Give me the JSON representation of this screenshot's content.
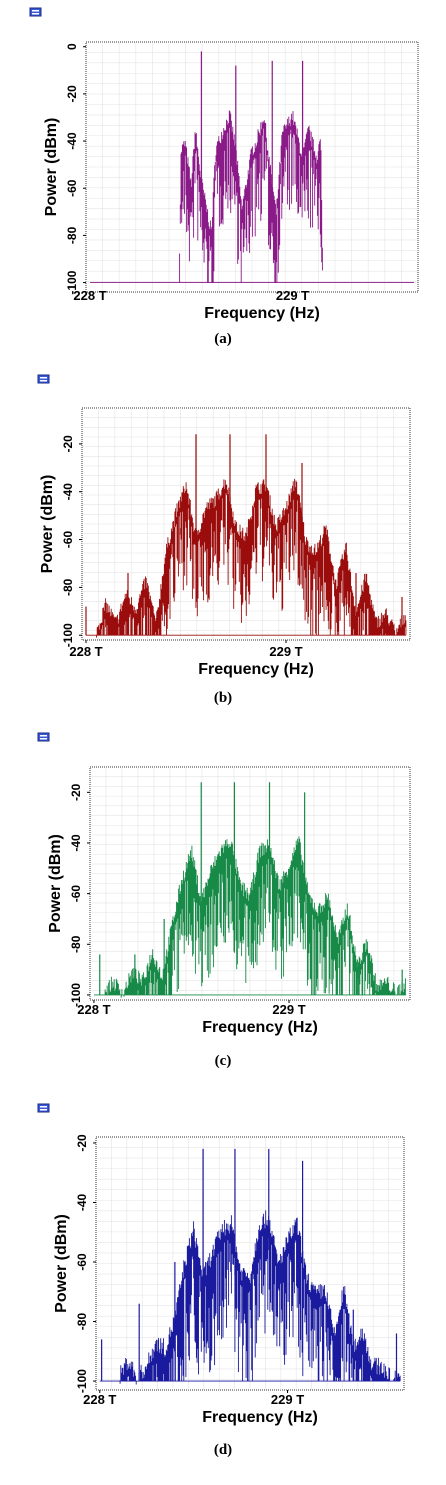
{
  "panels": [
    {
      "caption": "(a)",
      "color": "#8b1a89",
      "chart_data": {
        "type": "line",
        "xlabel": "Frequency (Hz)",
        "ylabel": "Power (dBm)",
        "xticks": [
          "228 T",
          "229 T"
        ],
        "yticks": [
          "0",
          "-20",
          "-40",
          "-60",
          "-80",
          "-100"
        ],
        "xlim_THz": [
          227.98,
          229.62
        ],
        "ylim": [
          -104,
          2
        ],
        "grid": true,
        "series": [
          {
            "x": [
              228.0,
              228.44,
              228.45,
              228.47,
              228.5,
              228.52,
              228.55,
              228.6,
              228.62,
              228.65,
              228.69,
              228.72,
              228.75,
              228.8,
              228.82,
              228.86,
              228.88,
              228.92,
              228.95,
              229.0,
              229.05,
              229.08,
              229.12,
              229.14,
              229.15,
              229.6
            ],
            "y": [
              -100,
              -100,
              -45,
              -42,
              -60,
              -36,
              -58,
              -80,
              -45,
              -38,
              -30,
              -44,
              -70,
              -45,
              -42,
              -30,
              -46,
              -72,
              -38,
              -30,
              -48,
              -36,
              -48,
              -40,
              -100,
              -100
            ],
            "peaks": [
              [
                228.55,
                -2
              ],
              [
                228.72,
                -8
              ],
              [
                228.9,
                -6
              ],
              [
                229.05,
                -6
              ]
            ]
          }
        ]
      }
    },
    {
      "caption": "(b)",
      "color": "#9b0c0c",
      "chart_data": {
        "type": "line",
        "xlabel": "Frequency (Hz)",
        "ylabel": "Power (dBm)",
        "xticks": [
          "228 T",
          "229 T"
        ],
        "yticks": [
          "-20",
          "-40",
          "-60",
          "-80",
          "-100"
        ],
        "xlim_THz": [
          227.98,
          229.62
        ],
        "ylim": [
          -102,
          -5
        ],
        "grid": true,
        "series": [
          {
            "x": [
              228.0,
              228.05,
              228.1,
              228.15,
              228.2,
              228.25,
              228.3,
              228.35,
              228.4,
              228.45,
              228.5,
              228.55,
              228.6,
              228.65,
              228.7,
              228.75,
              228.8,
              228.85,
              228.9,
              228.95,
              229.0,
              229.05,
              229.1,
              229.15,
              229.2,
              229.25,
              229.3,
              229.35,
              229.4,
              229.45,
              229.5,
              229.55,
              229.6
            ],
            "y": [
              -100,
              -100,
              -88,
              -96,
              -84,
              -90,
              -78,
              -96,
              -66,
              -50,
              -38,
              -60,
              -48,
              -44,
              -36,
              -56,
              -60,
              -40,
              -38,
              -56,
              -48,
              -36,
              -62,
              -66,
              -56,
              -80,
              -64,
              -92,
              -76,
              -96,
              -92,
              -100,
              -92
            ],
            "peaks": [
              [
                228.0,
                -88
              ],
              [
                228.21,
                -74
              ],
              [
                228.47,
                -58
              ],
              [
                228.55,
                -16
              ],
              [
                228.72,
                -16
              ],
              [
                228.9,
                -16
              ],
              [
                229.08,
                -28
              ],
              [
                229.35,
                -74
              ],
              [
                229.58,
                -84
              ]
            ]
          }
        ]
      }
    },
    {
      "caption": "(c)",
      "color": "#178a47",
      "chart_data": {
        "type": "line",
        "xlabel": "Frequency (Hz)",
        "ylabel": "Power (dBm)",
        "xticks": [
          "228 T",
          "229 T"
        ],
        "yticks": [
          "-20",
          "-40",
          "-60",
          "-80",
          "-100"
        ],
        "xlim_THz": [
          227.98,
          229.62
        ],
        "ylim": [
          -102,
          -10
        ],
        "grid": true,
        "series": [
          {
            "x": [
              228.0,
              228.05,
              228.1,
              228.15,
              228.2,
              228.25,
              228.3,
              228.35,
              228.4,
              228.45,
              228.5,
              228.55,
              228.6,
              228.65,
              228.7,
              228.75,
              228.8,
              228.85,
              228.9,
              228.95,
              229.0,
              229.05,
              229.1,
              229.15,
              229.2,
              229.25,
              229.3,
              229.35,
              229.4,
              229.45,
              229.5,
              229.55,
              229.6
            ],
            "y": [
              -100,
              -100,
              -96,
              -100,
              -92,
              -96,
              -84,
              -94,
              -74,
              -56,
              -44,
              -64,
              -52,
              -44,
              -40,
              -58,
              -62,
              -44,
              -42,
              -58,
              -50,
              -40,
              -62,
              -68,
              -62,
              -80,
              -66,
              -90,
              -80,
              -98,
              -96,
              -100,
              -96
            ],
            "peaks": [
              [
                228.03,
                -84
              ],
              [
                228.21,
                -84
              ],
              [
                228.36,
                -70
              ],
              [
                228.55,
                -16
              ],
              [
                228.72,
                -16
              ],
              [
                228.9,
                -16
              ],
              [
                229.08,
                -20
              ],
              [
                229.35,
                -86
              ],
              [
                229.58,
                -90
              ]
            ]
          }
        ]
      }
    },
    {
      "caption": "(d)",
      "color": "#1a1a9e",
      "chart_data": {
        "type": "line",
        "xlabel": "Frequency (Hz)",
        "ylabel": "Power (dBm)",
        "xticks": [
          "228 T",
          "229 T"
        ],
        "yticks": [
          "-20",
          "-40",
          "-60",
          "-80",
          "-100"
        ],
        "xlim_THz": [
          227.98,
          229.62
        ],
        "ylim": [
          -103,
          -18
        ],
        "grid": true,
        "series": [
          {
            "x": [
              228.0,
              228.05,
              228.1,
              228.15,
              228.2,
              228.25,
              228.3,
              228.35,
              228.4,
              228.45,
              228.5,
              228.55,
              228.6,
              228.65,
              228.7,
              228.75,
              228.8,
              228.85,
              228.9,
              228.95,
              229.0,
              229.05,
              229.1,
              229.15,
              229.2,
              229.25,
              229.3,
              229.35,
              229.4,
              229.45,
              229.5,
              229.55,
              229.6
            ],
            "y": [
              -100,
              -100,
              -100,
              -94,
              -100,
              -96,
              -88,
              -90,
              -80,
              -62,
              -50,
              -66,
              -58,
              -50,
              -48,
              -64,
              -66,
              -48,
              -46,
              -62,
              -54,
              -48,
              -66,
              -72,
              -70,
              -86,
              -70,
              -90,
              -84,
              -96,
              -96,
              -100,
              -98
            ],
            "peaks": [
              [
                228.01,
                -86
              ],
              [
                228.21,
                -74
              ],
              [
                228.4,
                -60
              ],
              [
                228.55,
                -22
              ],
              [
                228.72,
                -22
              ],
              [
                228.9,
                -22
              ],
              [
                229.08,
                -26
              ],
              [
                229.35,
                -76
              ],
              [
                229.58,
                -84
              ]
            ]
          }
        ]
      }
    }
  ]
}
